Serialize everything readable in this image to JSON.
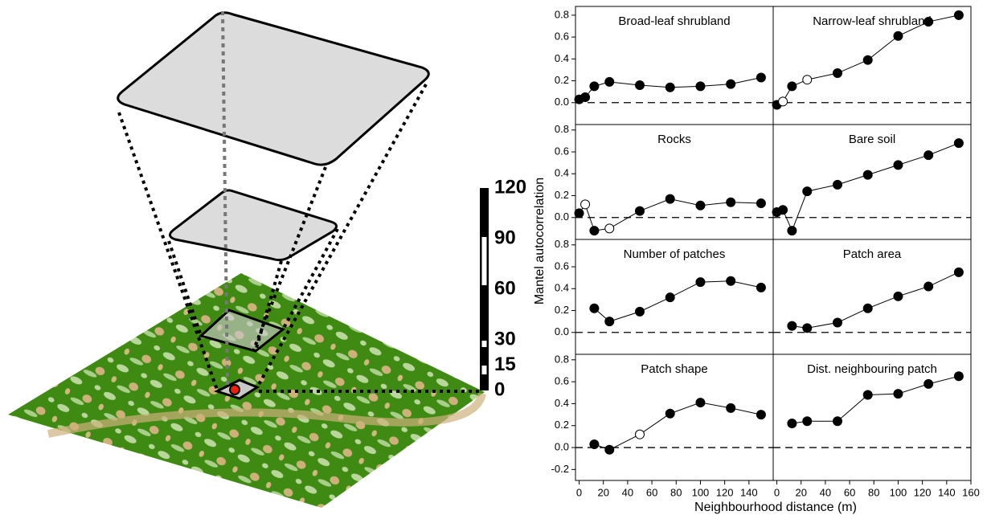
{
  "scale_bar": {
    "ylim": [
      0,
      120
    ],
    "ticks": [
      0,
      15,
      30,
      60,
      90,
      120
    ]
  },
  "axes": {
    "xlabel": "Neighbourhood distance (m)",
    "ylabel": "Mantel autocorrelation"
  },
  "chart_data": [
    {
      "type": "line",
      "title": "Broad-leaf shrubland",
      "x": [
        0,
        5,
        12.5,
        25,
        50,
        75,
        100,
        125,
        150
      ],
      "values": [
        0.03,
        0.05,
        0.15,
        0.19,
        0.16,
        0.14,
        0.15,
        0.17,
        0.23
      ],
      "filled": [
        true,
        true,
        true,
        true,
        true,
        true,
        true,
        true,
        true
      ],
      "xlim": [
        -3,
        160
      ],
      "ylim": [
        -0.2,
        0.88
      ],
      "yticks": [
        {
          "value": 0,
          "label": "0.0"
        },
        0.2,
        0.4,
        0.6,
        0.8
      ]
    },
    {
      "type": "line",
      "title": "Narrow-leaf shrubland",
      "x": [
        0,
        5,
        12.5,
        25,
        50,
        75,
        100,
        125,
        150
      ],
      "values": [
        -0.02,
        0.01,
        0.15,
        0.21,
        0.27,
        0.39,
        0.61,
        0.74,
        0.8
      ],
      "filled": [
        true,
        false,
        true,
        false,
        true,
        true,
        true,
        true,
        true
      ],
      "xlim": [
        -3,
        160
      ],
      "ylim": [
        -0.2,
        0.88
      ]
    },
    {
      "type": "line",
      "title": "Rocks",
      "x": [
        0,
        5,
        12.5,
        25,
        50,
        75,
        100,
        125,
        150
      ],
      "values": [
        0.04,
        0.12,
        -0.12,
        -0.1,
        0.06,
        0.17,
        0.11,
        0.14,
        0.13
      ],
      "filled": [
        true,
        false,
        true,
        false,
        true,
        true,
        true,
        true,
        true
      ],
      "xlim": [
        -3,
        160
      ],
      "ylim": [
        -0.2,
        0.85
      ],
      "yticks": [
        {
          "value": 0,
          "label": "0.0"
        },
        0.2,
        0.4,
        0.6,
        0.8
      ]
    },
    {
      "type": "line",
      "title": "Bare soil",
      "x": [
        0,
        5,
        12.5,
        25,
        50,
        75,
        100,
        125,
        150
      ],
      "values": [
        0.05,
        0.07,
        -0.12,
        0.24,
        0.3,
        0.39,
        0.48,
        0.57,
        0.68
      ],
      "filled": [
        true,
        true,
        true,
        true,
        true,
        true,
        true,
        true,
        true
      ],
      "xlim": [
        -3,
        160
      ],
      "ylim": [
        -0.2,
        0.85
      ]
    },
    {
      "type": "line",
      "title": "Number of patches",
      "x": [
        12.5,
        25,
        50,
        75,
        100,
        125,
        150
      ],
      "values": [
        0.22,
        0.1,
        0.19,
        0.32,
        0.46,
        0.47,
        0.41
      ],
      "filled": [
        true,
        true,
        true,
        true,
        true,
        true,
        true
      ],
      "xlim": [
        -3,
        160
      ],
      "ylim": [
        -0.2,
        0.85
      ],
      "yticks": [
        {
          "value": 0,
          "label": "0.0"
        },
        0.2,
        0.4,
        0.6,
        0.8
      ]
    },
    {
      "type": "line",
      "title": "Patch area",
      "x": [
        12.5,
        25,
        50,
        75,
        100,
        125,
        150
      ],
      "values": [
        0.06,
        0.04,
        0.09,
        0.22,
        0.33,
        0.42,
        0.55
      ],
      "filled": [
        true,
        true,
        true,
        true,
        true,
        true,
        true
      ],
      "xlim": [
        -3,
        160
      ],
      "ylim": [
        -0.2,
        0.85
      ]
    },
    {
      "type": "line",
      "title": "Patch shape",
      "x": [
        12.5,
        25,
        50,
        75,
        100,
        125,
        150
      ],
      "values": [
        0.03,
        -0.02,
        0.12,
        0.31,
        0.41,
        0.36,
        0.3
      ],
      "filled": [
        true,
        true,
        false,
        true,
        true,
        true,
        true
      ],
      "xlim": [
        -3,
        160
      ],
      "ylim": [
        -0.3,
        0.85
      ],
      "yticks": [
        -0.2,
        {
          "value": 0,
          "label": "0.0"
        },
        0.2,
        0.4,
        0.6,
        0.8
      ],
      "xticks": [
        0,
        20,
        40,
        60,
        80,
        100,
        120,
        140
      ]
    },
    {
      "type": "line",
      "title": "Dist. neighbouring patch",
      "x": [
        12.5,
        25,
        50,
        75,
        100,
        125,
        150
      ],
      "values": [
        0.22,
        0.24,
        0.24,
        0.48,
        0.49,
        0.58,
        0.65
      ],
      "filled": [
        true,
        true,
        true,
        true,
        true,
        true,
        true
      ],
      "xlim": [
        -3,
        160
      ],
      "ylim": [
        -0.3,
        0.85
      ],
      "xticks": [
        0,
        20,
        40,
        60,
        80,
        100,
        120,
        140,
        160
      ]
    }
  ]
}
